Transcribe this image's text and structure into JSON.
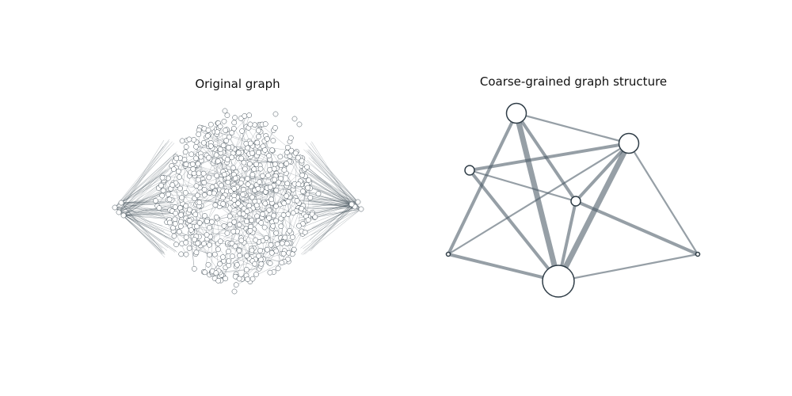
{
  "panels": {
    "left": {
      "title": "Original graph"
    },
    "right": {
      "title": "Coarse-grained graph structure"
    }
  },
  "colors": {
    "edge": "#4a5a66",
    "node_stroke": "#2f3d47",
    "node_fill": "#ffffff",
    "dense_edge": "#3e4d57"
  },
  "coarse_graph": {
    "nodes": [
      {
        "id": "A",
        "size": "medium"
      },
      {
        "id": "B",
        "size": "small"
      },
      {
        "id": "C",
        "size": "small"
      },
      {
        "id": "D",
        "size": "medium"
      },
      {
        "id": "E",
        "size": "tiny"
      },
      {
        "id": "F",
        "size": "tiny"
      },
      {
        "id": "G",
        "size": "large"
      }
    ],
    "edges": [
      {
        "from": "A",
        "to": "G",
        "weight": "heavy"
      },
      {
        "from": "A",
        "to": "B",
        "weight": "medium"
      },
      {
        "from": "A",
        "to": "D",
        "weight": "light"
      },
      {
        "from": "A",
        "to": "E",
        "weight": "medium"
      },
      {
        "from": "C",
        "to": "B",
        "weight": "light"
      },
      {
        "from": "C",
        "to": "D",
        "weight": "medium"
      },
      {
        "from": "C",
        "to": "G",
        "weight": "medium"
      },
      {
        "from": "B",
        "to": "D",
        "weight": "medium"
      },
      {
        "from": "B",
        "to": "G",
        "weight": "medium"
      },
      {
        "from": "B",
        "to": "F",
        "weight": "medium"
      },
      {
        "from": "D",
        "to": "G",
        "weight": "heavy"
      },
      {
        "from": "D",
        "to": "E",
        "weight": "light"
      },
      {
        "from": "D",
        "to": "F",
        "weight": "light"
      },
      {
        "from": "E",
        "to": "G",
        "weight": "medium"
      },
      {
        "from": "G",
        "to": "F",
        "weight": "light"
      }
    ]
  }
}
